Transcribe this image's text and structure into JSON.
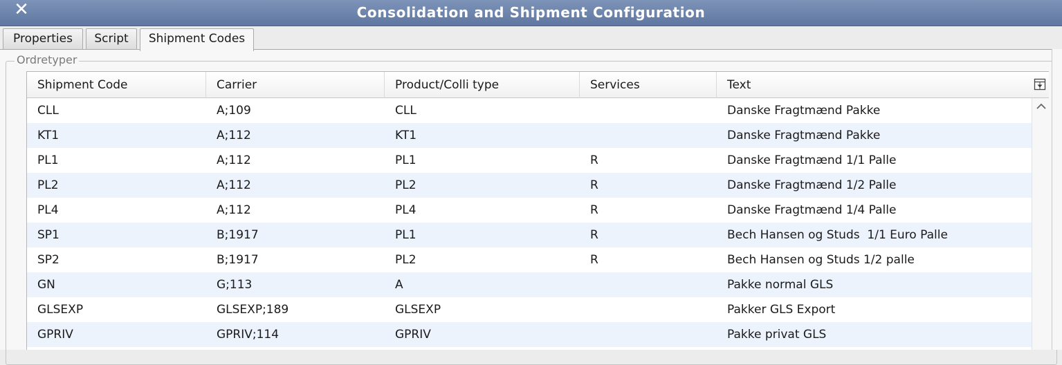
{
  "window": {
    "title": "Consolidation and Shipment Configuration",
    "close_symbol": "✕"
  },
  "tabs": [
    {
      "label": "Properties"
    },
    {
      "label": "Script"
    },
    {
      "label": "Shipment Codes",
      "active": true
    }
  ],
  "group": {
    "legend": "Ordretyper"
  },
  "table": {
    "columns": [
      "Shipment Code",
      "Carrier",
      "Product/Colli type",
      "Services",
      "Text"
    ],
    "rows": [
      [
        "CLL",
        "A;109",
        "CLL",
        "",
        "Danske Fragtmænd Pakke"
      ],
      [
        "KT1",
        "A;112",
        "KT1",
        "",
        "Danske Fragtmænd Pakke"
      ],
      [
        "PL1",
        "A;112",
        "PL1",
        "R",
        "Danske Fragtmænd 1/1 Palle"
      ],
      [
        "PL2",
        "A;112",
        "PL2",
        "R",
        "Danske Fragtmænd 1/2 Palle"
      ],
      [
        "PL4",
        "A;112",
        "PL4",
        "R",
        "Danske Fragtmænd 1/4 Palle"
      ],
      [
        "SP1",
        "B;1917",
        "PL1",
        "R",
        "Bech Hansen og Studs  1/1 Euro Palle"
      ],
      [
        "SP2",
        "B;1917",
        "PL2",
        "R",
        "Bech Hansen og Studs 1/2 palle"
      ],
      [
        "GN",
        "G;113",
        "A",
        "",
        "Pakke normal GLS"
      ],
      [
        "GLSEXP",
        "GLSEXP;189",
        "GLSEXP",
        "",
        "Pakker GLS Export"
      ],
      [
        "GPRIV",
        "GPRIV;114",
        "GPRIV",
        "",
        "Pakke privat GLS"
      ]
    ],
    "row_alt_color": "#edf3fd",
    "column_control_icon": "column-control-icon",
    "scroll_up_icon": "chevron-up-icon"
  },
  "colors": {
    "titlebar": "#6a81aa",
    "title_text": "#ffffff",
    "background": "#ececec"
  }
}
